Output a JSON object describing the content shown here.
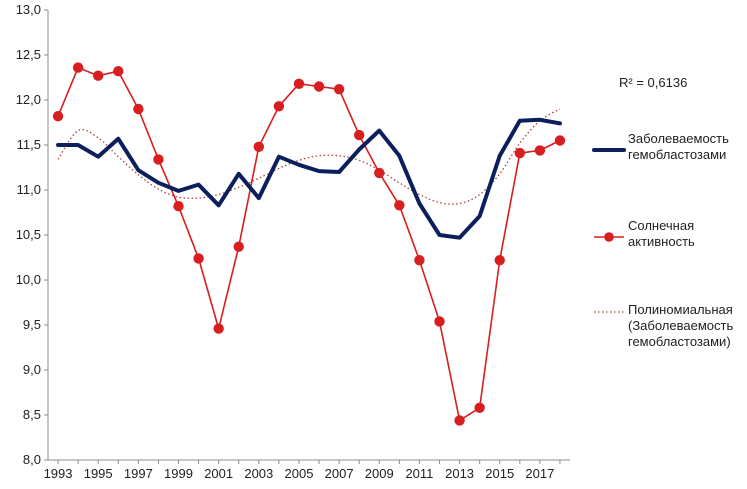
{
  "chart_data": {
    "type": "line",
    "title": "",
    "xlabel": "",
    "ylabel": "",
    "ylim": [
      8.0,
      13.0
    ],
    "y_ticks": [
      "8,0",
      "8,5",
      "9,0",
      "9,5",
      "10,0",
      "10,5",
      "11,0",
      "11,5",
      "12,0",
      "12,5",
      "13,0"
    ],
    "x_ticks": [
      "1993",
      "1995",
      "1997",
      "1999",
      "2001",
      "2003",
      "2005",
      "2007",
      "2009",
      "2011",
      "2013",
      "2015",
      "2017"
    ],
    "grid": false,
    "legend_position": "right",
    "annotation": "R² = 0,6136",
    "x": [
      1993,
      1994,
      1995,
      1996,
      1997,
      1998,
      1999,
      2000,
      2001,
      2002,
      2003,
      2004,
      2005,
      2006,
      2007,
      2008,
      2009,
      2010,
      2011,
      2012,
      2013,
      2014,
      2015,
      2016,
      2017,
      2018
    ],
    "series": [
      {
        "name": "Заболеваемость гемобластозами",
        "color": "#0b1f5c",
        "style": "thick-line",
        "values": [
          11.5,
          11.5,
          11.37,
          11.57,
          11.22,
          11.08,
          10.99,
          11.06,
          10.83,
          11.18,
          10.91,
          11.37,
          11.28,
          11.21,
          11.2,
          11.45,
          11.66,
          11.38,
          10.85,
          10.5,
          10.47,
          10.71,
          11.38,
          11.77,
          11.78,
          11.74
        ]
      },
      {
        "name": "Солнечная активность",
        "color": "#d81e1e",
        "style": "line-markers",
        "values": [
          11.82,
          12.36,
          12.27,
          12.32,
          11.9,
          11.34,
          10.82,
          10.24,
          9.46,
          10.37,
          11.48,
          11.93,
          12.18,
          12.15,
          12.12,
          11.61,
          11.19,
          10.83,
          10.22,
          9.54,
          8.44,
          8.58,
          10.22,
          11.41,
          11.44,
          11.55
        ]
      },
      {
        "name": "Полиномиальная (Заболеваемость гемобластозами)",
        "color": "#b2403a",
        "style": "dotted",
        "values": [
          11.34,
          11.66,
          11.58,
          11.37,
          11.17,
          11.01,
          10.92,
          10.91,
          10.95,
          11.03,
          11.13,
          11.24,
          11.33,
          11.38,
          11.38,
          11.33,
          11.22,
          11.08,
          10.95,
          10.86,
          10.85,
          10.95,
          11.18,
          11.52,
          11.77,
          11.9
        ]
      }
    ],
    "legend": [
      {
        "lines": [
          "Заболеваемость",
          "гемобластозами"
        ]
      },
      {
        "lines": [
          "Солнечная",
          "активность"
        ]
      },
      {
        "lines": [
          "Полиномиальная",
          "(Заболеваемость",
          "гемобластозами)"
        ]
      }
    ]
  }
}
